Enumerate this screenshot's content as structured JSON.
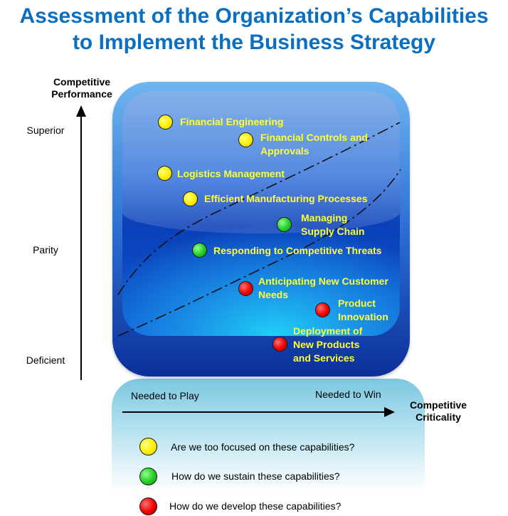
{
  "title": {
    "line1": "Assessment of the Organization’s Capabilities",
    "line2": "to Implement the Business Strategy"
  },
  "y_axis": {
    "title_line1": "Competitive",
    "title_line2": "Performance",
    "ticks": {
      "superior": "Superior",
      "parity": "Parity",
      "deficient": "Deficient"
    }
  },
  "x_axis": {
    "left_label": "Needed to Play",
    "right_label": "Needed to Win",
    "title_line1": "Competitive",
    "title_line2": "Criticality"
  },
  "capabilities": [
    {
      "lines": [
        "Financial Engineering"
      ],
      "status": "yellow"
    },
    {
      "lines": [
        "Financial Controls and",
        "Approvals"
      ],
      "status": "yellow"
    },
    {
      "lines": [
        "Logistics Management"
      ],
      "status": "yellow"
    },
    {
      "lines": [
        "Efficient Manufacturing Processes"
      ],
      "status": "yellow"
    },
    {
      "lines": [
        "Managing",
        "Supply Chain"
      ],
      "status": "green"
    },
    {
      "lines": [
        "Responding to Competitive Threats"
      ],
      "status": "green"
    },
    {
      "lines": [
        "Anticipating New Customer",
        "Needs"
      ],
      "status": "red"
    },
    {
      "lines": [
        "Product",
        "Innovation"
      ],
      "status": "red"
    },
    {
      "lines": [
        "Deployment of",
        "New Products",
        "and Services"
      ],
      "status": "red"
    }
  ],
  "legend": [
    {
      "color": "yellow",
      "text": "Are we too focused on these capabilities?"
    },
    {
      "color": "green",
      "text": "How do we sustain these capabilities?"
    },
    {
      "color": "red",
      "text": "How do we develop these capabilities?"
    }
  ],
  "colors": {
    "title": "#0b6fc1",
    "label": "#ffff33",
    "yellow": "#ffee00",
    "green": "#22cc22",
    "red": "#ee0000"
  }
}
